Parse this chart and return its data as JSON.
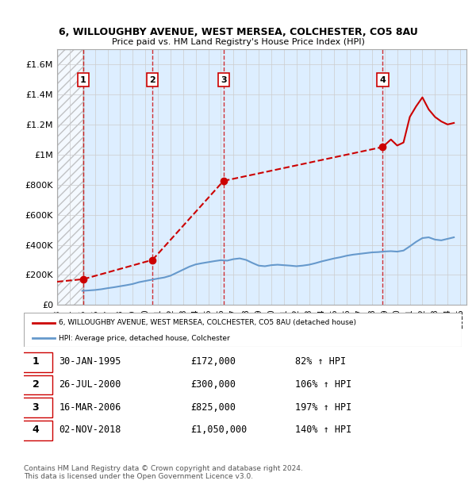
{
  "title_line1": "6, WILLOUGHBY AVENUE, WEST MERSEA, COLCHESTER, CO5 8AU",
  "title_line2": "Price paid vs. HM Land Registry's House Price Index (HPI)",
  "transactions": [
    {
      "num": 1,
      "date": "1995-01-30",
      "price": 172000,
      "pct": "82%",
      "x_year": 1995.08
    },
    {
      "num": 2,
      "date": "2000-07-26",
      "price": 300000,
      "pct": "106%",
      "x_year": 2000.57
    },
    {
      "num": 3,
      "date": "2006-03-16",
      "price": 825000,
      "pct": "197%",
      "x_year": 2006.21
    },
    {
      "num": 4,
      "date": "2018-11-02",
      "price": 1050000,
      "pct": "140%",
      "x_year": 2018.84
    }
  ],
  "hpi_line_color": "#6699cc",
  "price_line_color": "#cc0000",
  "hpi_data_x": [
    1995.0,
    1995.5,
    1996.0,
    1996.5,
    1997.0,
    1997.5,
    1998.0,
    1998.5,
    1999.0,
    1999.5,
    2000.0,
    2000.5,
    2001.0,
    2001.5,
    2002.0,
    2002.5,
    2003.0,
    2003.5,
    2004.0,
    2004.5,
    2005.0,
    2005.5,
    2006.0,
    2006.5,
    2007.0,
    2007.5,
    2008.0,
    2008.5,
    2009.0,
    2009.5,
    2010.0,
    2010.5,
    2011.0,
    2011.5,
    2012.0,
    2012.5,
    2013.0,
    2013.5,
    2014.0,
    2014.5,
    2015.0,
    2015.5,
    2016.0,
    2016.5,
    2017.0,
    2017.5,
    2018.0,
    2018.5,
    2019.0,
    2019.5,
    2020.0,
    2020.5,
    2021.0,
    2021.5,
    2022.0,
    2022.5,
    2023.0,
    2023.5,
    2024.0,
    2024.5
  ],
  "hpi_data_y": [
    94500,
    97000,
    100000,
    105000,
    112000,
    118000,
    125000,
    132000,
    140000,
    152000,
    160000,
    168000,
    176000,
    183000,
    195000,
    215000,
    235000,
    255000,
    270000,
    278000,
    285000,
    292000,
    298000,
    295000,
    305000,
    310000,
    300000,
    280000,
    262000,
    258000,
    265000,
    268000,
    265000,
    262000,
    258000,
    262000,
    268000,
    278000,
    290000,
    300000,
    310000,
    318000,
    328000,
    335000,
    340000,
    345000,
    350000,
    352000,
    356000,
    358000,
    355000,
    362000,
    390000,
    420000,
    445000,
    450000,
    435000,
    430000,
    440000,
    450000
  ],
  "price_data_x": [
    1993.0,
    1995.08,
    2000.57,
    2006.21,
    2018.84,
    2019.5,
    2020.0,
    2020.5,
    2021.0,
    2021.5,
    2022.0,
    2022.5,
    2023.0,
    2023.5,
    2024.0,
    2024.5
  ],
  "price_data_y": [
    155000,
    172000,
    300000,
    825000,
    1050000,
    1100000,
    1060000,
    1080000,
    1250000,
    1320000,
    1380000,
    1300000,
    1250000,
    1220000,
    1200000,
    1210000
  ],
  "ylim": [
    0,
    1700000
  ],
  "xlim_start": 1993.0,
  "xlim_end": 2025.5,
  "yticks": [
    0,
    200000,
    400000,
    600000,
    800000,
    1000000,
    1200000,
    1400000,
    1600000
  ],
  "ytick_labels": [
    "£0",
    "£200K",
    "£400K",
    "£600K",
    "£800K",
    "£1M",
    "£1.2M",
    "£1.4M",
    "£1.6M"
  ],
  "xticks": [
    1993,
    1994,
    1995,
    1996,
    1997,
    1998,
    1999,
    2000,
    2001,
    2002,
    2003,
    2004,
    2005,
    2006,
    2007,
    2008,
    2009,
    2010,
    2011,
    2012,
    2013,
    2014,
    2015,
    2016,
    2017,
    2018,
    2019,
    2020,
    2021,
    2022,
    2023,
    2024,
    2025
  ],
  "hatch_region_end": 1995.08,
  "legend_label_red": "6, WILLOUGHBY AVENUE, WEST MERSEA, COLCHESTER, CO5 8AU (detached house)",
  "legend_label_blue": "HPI: Average price, detached house, Colchester",
  "table_rows": [
    [
      "1",
      "30-JAN-1995",
      "£172,000",
      "82% ↑ HPI"
    ],
    [
      "2",
      "26-JUL-2000",
      "£300,000",
      "106% ↑ HPI"
    ],
    [
      "3",
      "16-MAR-2006",
      "£825,000",
      "197% ↑ HPI"
    ],
    [
      "4",
      "02-NOV-2018",
      "£1,050,000",
      "140% ↑ HPI"
    ]
  ],
  "footer_text": "Contains HM Land Registry data © Crown copyright and database right 2024.\nThis data is licensed under the Open Government Licence v3.0.",
  "bg_color": "#ffffff",
  "plot_bg_color": "#ddeeff",
  "hatch_color": "#cccccc",
  "grid_color": "#cccccc",
  "vline_color": "#cc0000"
}
